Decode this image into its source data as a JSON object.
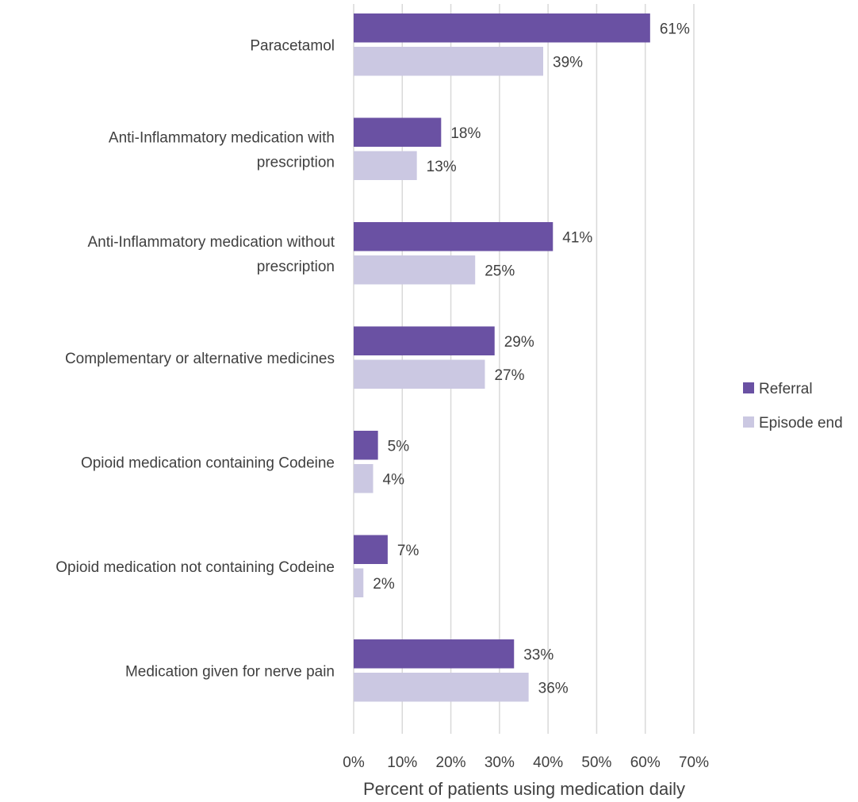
{
  "chart_data": {
    "type": "bar",
    "orientation": "horizontal",
    "categories": [
      [
        "Paracetamol"
      ],
      [
        "Anti-Inflammatory medication with",
        "prescription"
      ],
      [
        "Anti-Inflammatory medication without",
        "prescription"
      ],
      [
        "Complementary or alternative medicines"
      ],
      [
        "Opioid medication containing Codeine"
      ],
      [
        "Opioid medication not containing Codeine"
      ],
      [
        "Medication given for nerve pain"
      ]
    ],
    "series": [
      {
        "name": "Referral",
        "color": "#6a51a3",
        "values": [
          61,
          18,
          41,
          29,
          5,
          7,
          33
        ],
        "labels": [
          "61%",
          "18%",
          "41%",
          "29%",
          "5%",
          "7%",
          "33%"
        ]
      },
      {
        "name": "Episode end",
        "color": "#cbc8e2",
        "values": [
          39,
          13,
          25,
          27,
          4,
          2,
          36
        ],
        "labels": [
          "39%",
          "13%",
          "25%",
          "27%",
          "4%",
          "2%",
          "36%"
        ]
      }
    ],
    "xlabel": "Percent of patients using medication daily",
    "xlim": [
      0,
      70
    ],
    "xticks": [
      0,
      10,
      20,
      30,
      40,
      50,
      60,
      70
    ],
    "xtick_labels": [
      "0%",
      "10%",
      "20%",
      "30%",
      "40%",
      "50%",
      "60%",
      "70%"
    ],
    "grid": true,
    "legend_position": "right"
  }
}
